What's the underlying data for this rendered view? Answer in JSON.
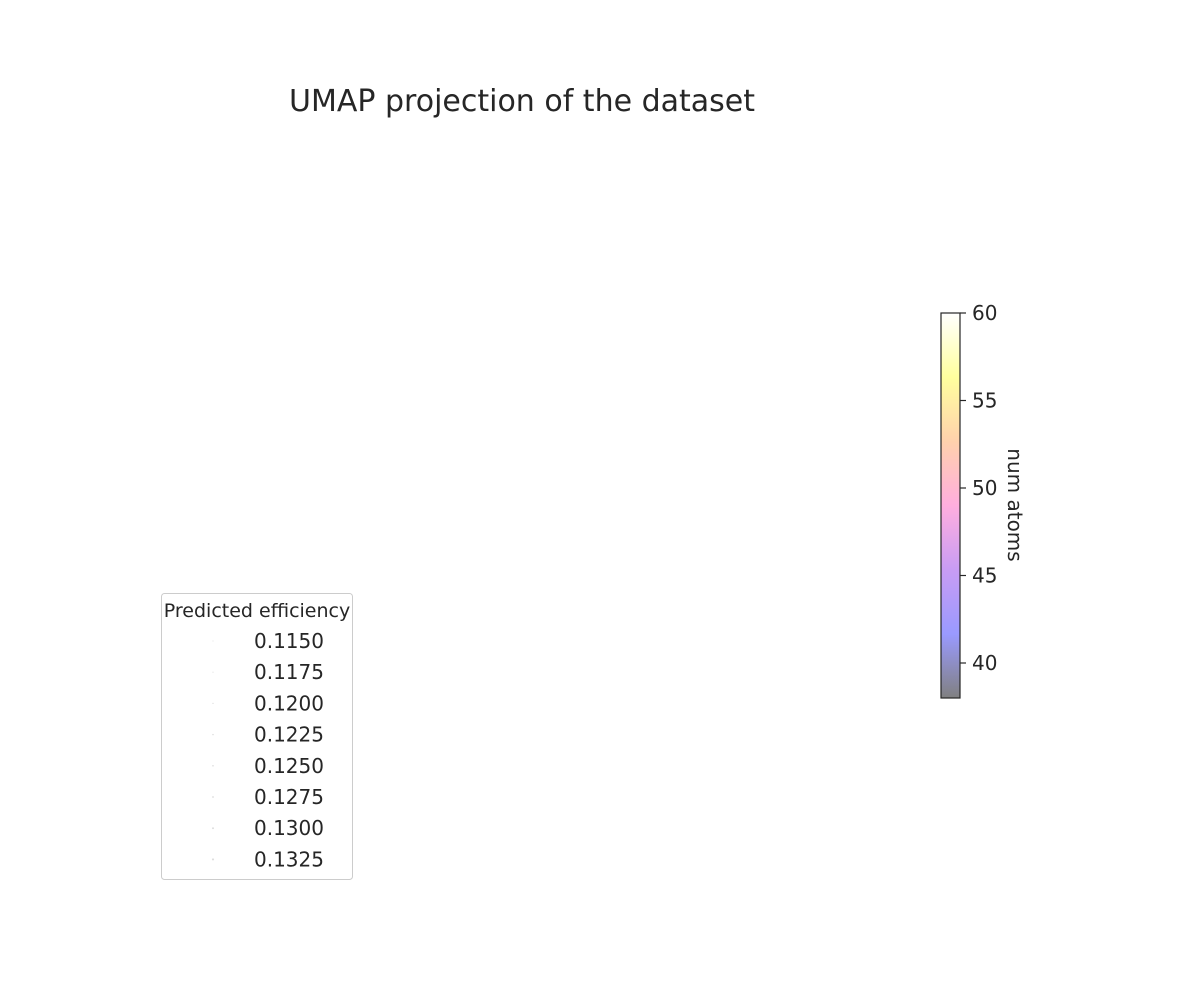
{
  "chart_data": {
    "type": "scatter",
    "title": "UMAP projection of the dataset",
    "xlabel": "",
    "ylabel": "",
    "points": [],
    "colorbar": {
      "label": "num atoms",
      "min": 38,
      "max": 60,
      "ticks": [
        "40",
        "45",
        "50",
        "55",
        "60"
      ],
      "colors": [
        "#808080",
        "#9a9aff",
        "#c89cf4",
        "#ffaede",
        "#ffd1ac",
        "#ffff9e",
        "#ffffff"
      ]
    },
    "size_legend": {
      "title": "Predicted efficiency",
      "placement": "lower-left",
      "entries": [
        "0.1150",
        "0.1175",
        "0.1200",
        "0.1225",
        "0.1250",
        "0.1275",
        "0.1300",
        "0.1325"
      ]
    }
  }
}
